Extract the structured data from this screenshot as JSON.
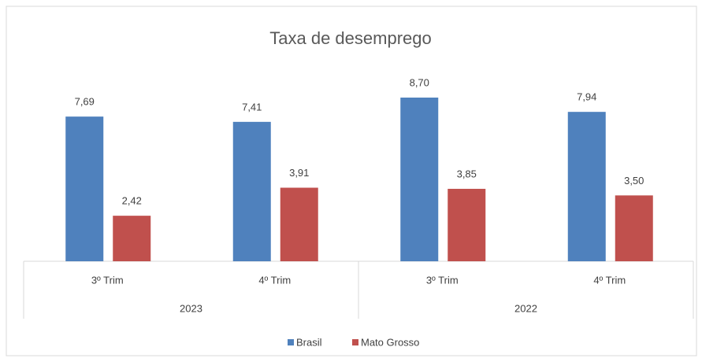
{
  "chart_data": {
    "type": "bar",
    "title": "Taxa de desemprego",
    "category_groups": [
      {
        "name": "2023",
        "categories": [
          "3º Trim",
          "4º Trim"
        ]
      },
      {
        "name": "2022",
        "categories": [
          "3º Trim",
          "4º Trim"
        ]
      }
    ],
    "series": [
      {
        "name": "Brasil",
        "color": "#4f81bd",
        "values": [
          7.69,
          7.41,
          8.7,
          7.94
        ],
        "value_labels": [
          "7,69",
          "7,41",
          "8,70",
          "7,94"
        ]
      },
      {
        "name": "Mato Grosso",
        "color": "#c0504d",
        "values": [
          2.42,
          3.91,
          3.85,
          3.5
        ],
        "value_labels": [
          "2,42",
          "3,91",
          "3,85",
          "3,50"
        ]
      }
    ],
    "legend": "bottom"
  }
}
